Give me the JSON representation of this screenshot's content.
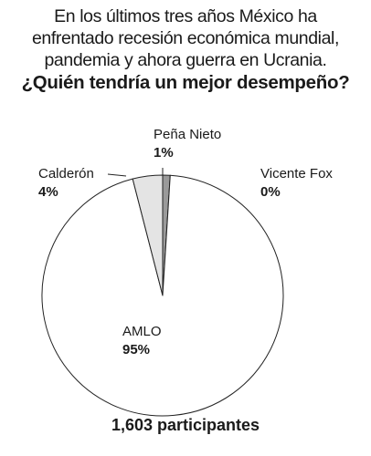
{
  "header": {
    "subtitle_lines": [
      "En los últimos tres años México ha",
      "enfrentado recesión económica mundial,",
      "pandemia y ahora guerra en Ucrania."
    ],
    "title": "¿Quién tendría un mejor desempeño?"
  },
  "chart_data": {
    "type": "pie",
    "title": "¿Quién tendría un mejor desempeño?",
    "slices": [
      {
        "label": "Peña Nieto",
        "value": 1,
        "display": "1%",
        "color": "#9a9a9a"
      },
      {
        "label": "Vicente Fox",
        "value": 0,
        "display": "0%",
        "color": "#ffffff"
      },
      {
        "label": "AMLO",
        "value": 95,
        "display": "95%",
        "color": "#ffffff"
      },
      {
        "label": "Calderón",
        "value": 4,
        "display": "4%",
        "color": "#e4e4e4"
      }
    ],
    "start": "12 o'clock",
    "direction": "clockwise"
  },
  "footer": {
    "participants": "1,603 participantes"
  }
}
